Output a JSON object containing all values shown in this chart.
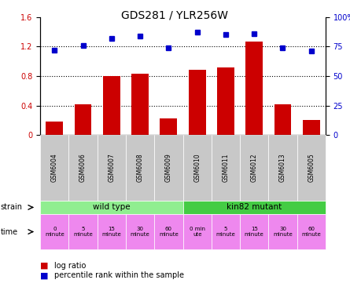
{
  "title": "GDS281 / YLR256W",
  "samples": [
    "GSM6004",
    "GSM6006",
    "GSM6007",
    "GSM6008",
    "GSM6009",
    "GSM6010",
    "GSM6011",
    "GSM6012",
    "GSM6013",
    "GSM6005"
  ],
  "log_ratio": [
    0.18,
    0.42,
    0.8,
    0.83,
    0.22,
    0.88,
    0.92,
    1.27,
    0.42,
    0.2
  ],
  "percentile": [
    72,
    76,
    82,
    84,
    74,
    87,
    85,
    86,
    74,
    71
  ],
  "ylim_left": [
    0,
    1.6
  ],
  "ylim_right": [
    0,
    100
  ],
  "yticks_left": [
    0,
    0.4,
    0.8,
    1.2,
    1.6
  ],
  "yticks_right": [
    0,
    25,
    50,
    75,
    100
  ],
  "ytick_labels_right": [
    "0",
    "25",
    "50",
    "75",
    "100%"
  ],
  "bar_color": "#cc0000",
  "dot_color": "#0000cc",
  "strain_wild_color": "#90ee90",
  "strain_mut_color": "#44cc44",
  "time_color": "#ee88ee",
  "sample_bg_color": "#c8c8c8",
  "wild_type_label": "wild type",
  "mutant_label": "kin82 mutant",
  "strain_label": "strain",
  "time_label": "time",
  "time_labels_wild": [
    "0\nminute",
    "5\nminute",
    "15\nminute",
    "30\nminute",
    "60\nminute"
  ],
  "time_labels_mut": [
    "0 min\nute",
    "5\nminute",
    "15\nminute",
    "30\nminute",
    "60\nminute"
  ],
  "legend_bar": "log ratio",
  "legend_dot": "percentile rank within the sample",
  "n_wild": 5,
  "n_mut": 5
}
